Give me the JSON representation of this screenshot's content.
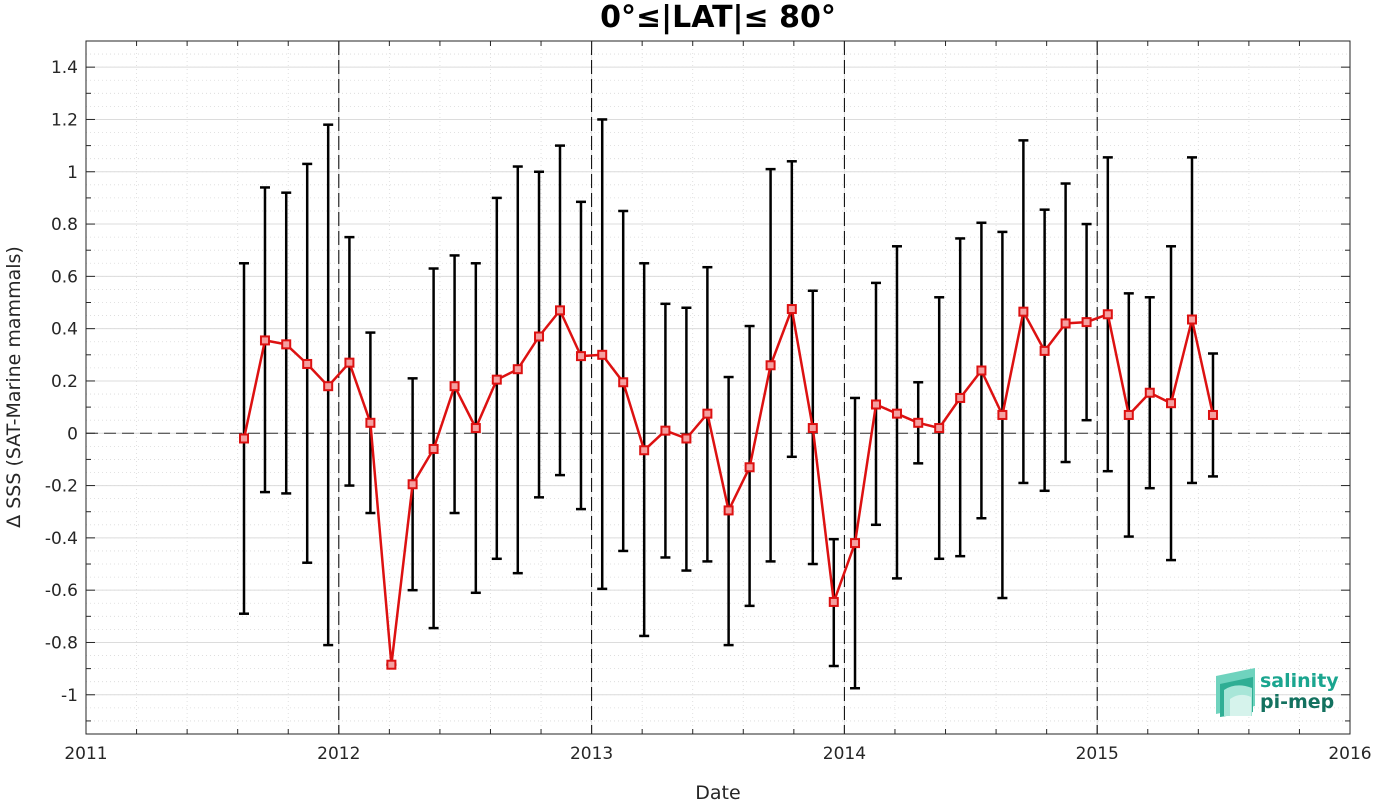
{
  "chart_data": {
    "type": "line",
    "title": "0°≤|LAT|≤ 80°",
    "xlabel": "Date",
    "ylabel": "Δ SSS (SAT-Marine mammals)",
    "xlim": [
      2011,
      2016
    ],
    "ylim": [
      -1.15,
      1.5
    ],
    "x_ticks": [
      2011,
      2012,
      2013,
      2014,
      2015,
      2016
    ],
    "x_tick_labels": [
      "2011",
      "2012",
      "2013",
      "2014",
      "2015",
      "2016"
    ],
    "y_ticks": [
      -1,
      -0.8,
      -0.6,
      -0.4,
      -0.2,
      0,
      0.2,
      0.4,
      0.6,
      0.8,
      1,
      1.2,
      1.4
    ],
    "y_tick_labels": [
      "-1",
      "-0.8",
      "-0.6",
      "-0.4",
      "-0.2",
      "0",
      "0.2",
      "0.4",
      "0.6",
      "0.8",
      "1",
      "1.2",
      "1.4"
    ],
    "grid": true,
    "year_separators": [
      2012,
      2013,
      2014,
      2015
    ],
    "zero_line": true,
    "series": [
      {
        "color": "#dd1111",
        "error_bar_color": "#000000",
        "points": [
          {
            "x": 2011.625,
            "y": -0.02,
            "low": -0.69,
            "high": 0.65
          },
          {
            "x": 2011.708,
            "y": 0.355,
            "low": -0.225,
            "high": 0.94
          },
          {
            "x": 2011.792,
            "y": 0.34,
            "low": -0.23,
            "high": 0.92
          },
          {
            "x": 2011.875,
            "y": 0.265,
            "low": -0.495,
            "high": 1.03
          },
          {
            "x": 2011.958,
            "y": 0.18,
            "low": -0.81,
            "high": 1.18
          },
          {
            "x": 2012.042,
            "y": 0.27,
            "low": -0.2,
            "high": 0.75
          },
          {
            "x": 2012.125,
            "y": 0.04,
            "low": -0.305,
            "high": 0.385
          },
          {
            "x": 2012.208,
            "y": -0.885,
            "low": -0.885,
            "high": -0.885
          },
          {
            "x": 2012.292,
            "y": -0.195,
            "low": -0.6,
            "high": 0.21
          },
          {
            "x": 2012.375,
            "y": -0.06,
            "low": -0.745,
            "high": 0.63
          },
          {
            "x": 2012.458,
            "y": 0.18,
            "low": -0.305,
            "high": 0.68
          },
          {
            "x": 2012.542,
            "y": 0.02,
            "low": -0.61,
            "high": 0.65
          },
          {
            "x": 2012.625,
            "y": 0.205,
            "low": -0.48,
            "high": 0.9
          },
          {
            "x": 2012.708,
            "y": 0.245,
            "low": -0.535,
            "high": 1.02
          },
          {
            "x": 2012.792,
            "y": 0.37,
            "low": -0.245,
            "high": 1.0
          },
          {
            "x": 2012.875,
            "y": 0.47,
            "low": -0.16,
            "high": 1.1
          },
          {
            "x": 2012.958,
            "y": 0.295,
            "low": -0.29,
            "high": 0.885
          },
          {
            "x": 2013.042,
            "y": 0.3,
            "low": -0.595,
            "high": 1.2
          },
          {
            "x": 2013.125,
            "y": 0.195,
            "low": -0.45,
            "high": 0.85
          },
          {
            "x": 2013.208,
            "y": -0.065,
            "low": -0.775,
            "high": 0.65
          },
          {
            "x": 2013.292,
            "y": 0.01,
            "low": -0.475,
            "high": 0.495
          },
          {
            "x": 2013.375,
            "y": -0.02,
            "low": -0.525,
            "high": 0.48
          },
          {
            "x": 2013.458,
            "y": 0.075,
            "low": -0.49,
            "high": 0.635
          },
          {
            "x": 2013.542,
            "y": -0.295,
            "low": -0.81,
            "high": 0.215
          },
          {
            "x": 2013.625,
            "y": -0.13,
            "low": -0.66,
            "high": 0.41
          },
          {
            "x": 2013.708,
            "y": 0.26,
            "low": -0.49,
            "high": 1.01
          },
          {
            "x": 2013.792,
            "y": 0.475,
            "low": -0.09,
            "high": 1.04
          },
          {
            "x": 2013.875,
            "y": 0.02,
            "low": -0.5,
            "high": 0.545
          },
          {
            "x": 2013.958,
            "y": -0.645,
            "low": -0.89,
            "high": -0.405
          },
          {
            "x": 2014.042,
            "y": -0.42,
            "low": -0.975,
            "high": 0.135
          },
          {
            "x": 2014.125,
            "y": 0.11,
            "low": -0.35,
            "high": 0.575
          },
          {
            "x": 2014.208,
            "y": 0.075,
            "low": -0.555,
            "high": 0.715
          },
          {
            "x": 2014.292,
            "y": 0.04,
            "low": -0.115,
            "high": 0.195
          },
          {
            "x": 2014.375,
            "y": 0.02,
            "low": -0.48,
            "high": 0.52
          },
          {
            "x": 2014.458,
            "y": 0.135,
            "low": -0.47,
            "high": 0.745
          },
          {
            "x": 2014.542,
            "y": 0.24,
            "low": -0.325,
            "high": 0.805
          },
          {
            "x": 2014.625,
            "y": 0.07,
            "low": -0.63,
            "high": 0.77
          },
          {
            "x": 2014.708,
            "y": 0.465,
            "low": -0.19,
            "high": 1.12
          },
          {
            "x": 2014.792,
            "y": 0.315,
            "low": -0.22,
            "high": 0.855
          },
          {
            "x": 2014.875,
            "y": 0.42,
            "low": -0.11,
            "high": 0.955
          },
          {
            "x": 2014.958,
            "y": 0.425,
            "low": 0.05,
            "high": 0.8
          },
          {
            "x": 2015.042,
            "y": 0.455,
            "low": -0.145,
            "high": 1.055
          },
          {
            "x": 2015.125,
            "y": 0.07,
            "low": -0.395,
            "high": 0.535
          },
          {
            "x": 2015.208,
            "y": 0.155,
            "low": -0.21,
            "high": 0.52
          },
          {
            "x": 2015.292,
            "y": 0.115,
            "low": -0.485,
            "high": 0.715
          },
          {
            "x": 2015.375,
            "y": 0.435,
            "low": -0.19,
            "high": 1.055
          },
          {
            "x": 2015.458,
            "y": 0.07,
            "low": -0.165,
            "high": 0.305
          }
        ]
      }
    ]
  },
  "logo": {
    "line1": "salinity",
    "line2": "pi-mep",
    "color1": "#1aa58f",
    "color2": "#13715f"
  }
}
